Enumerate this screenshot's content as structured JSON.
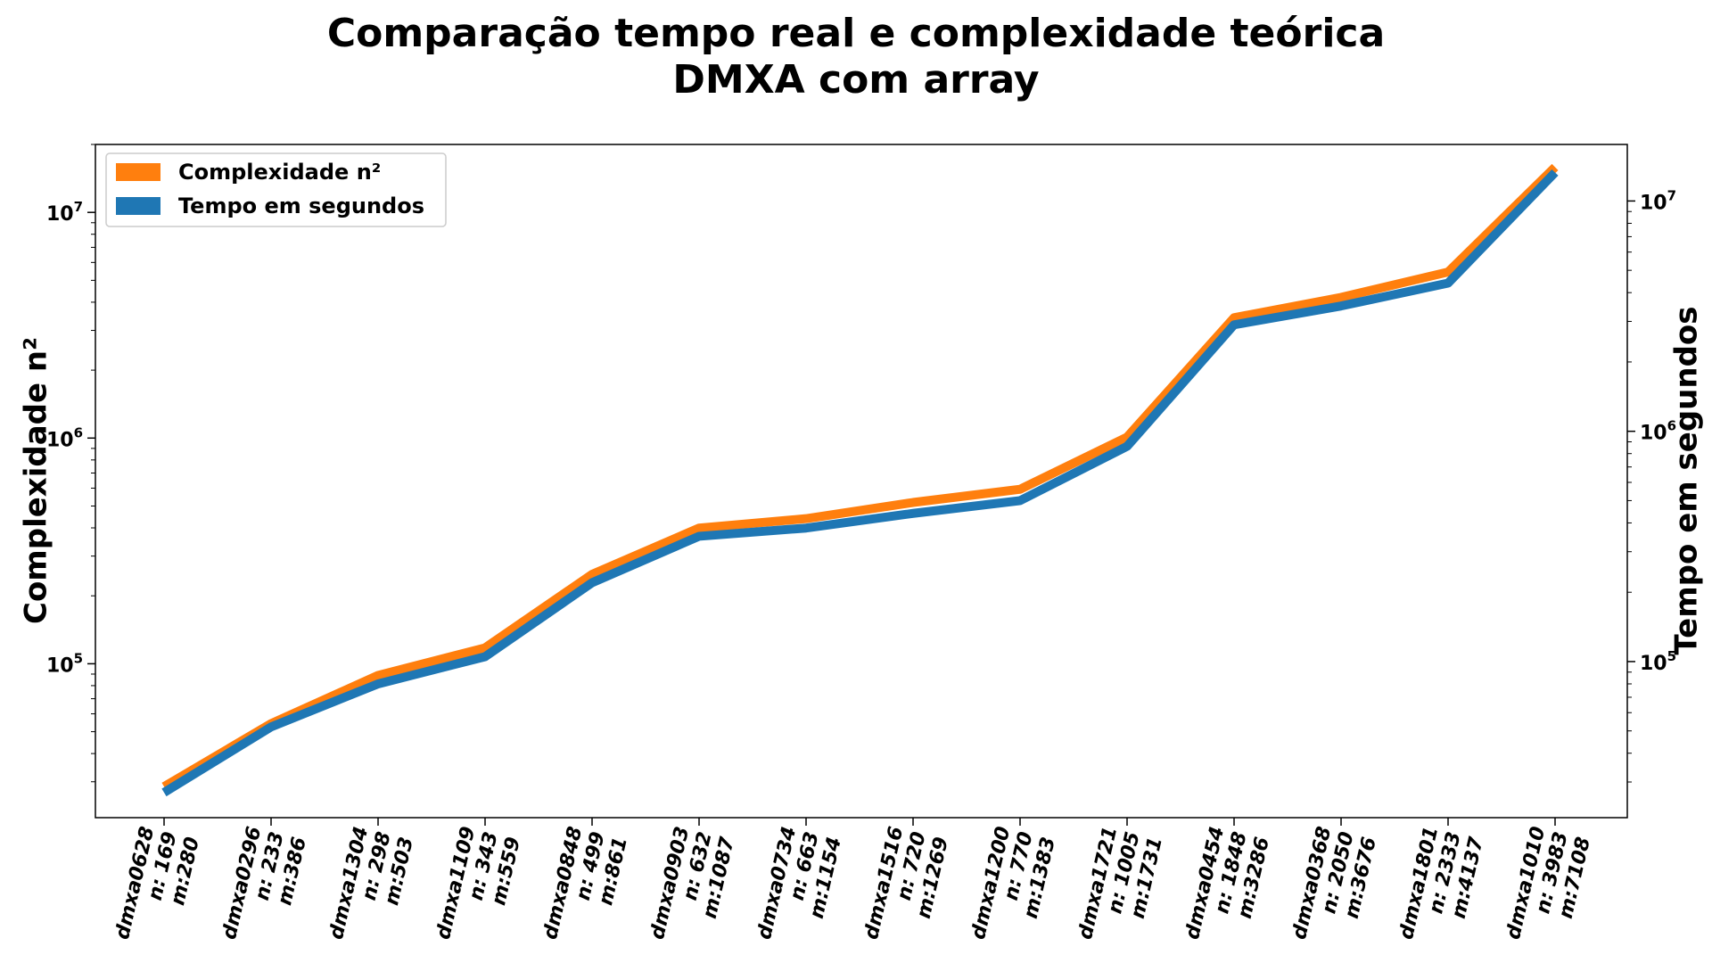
{
  "chart_data": {
    "type": "line",
    "title": "Comparação tempo real e complexidade teórica",
    "subtitle": "DMXA com array",
    "ylabel": "Complexidade n²",
    "y2label": "Tempo em segundos",
    "yscale": "log",
    "y2scale": "log",
    "ylim": [
      20800,
      20000000
    ],
    "y2lim": [
      21000,
      17600000
    ],
    "yticks": [
      {
        "value": 100000,
        "base": "10",
        "exp": "5"
      },
      {
        "value": 1000000,
        "base": "10",
        "exp": "6"
      },
      {
        "value": 10000000,
        "base": "10",
        "exp": "7"
      }
    ],
    "y2ticks": [
      {
        "value": 100000,
        "base": "10",
        "exp": "5"
      },
      {
        "value": 1000000,
        "base": "10",
        "exp": "6"
      },
      {
        "value": 10000000,
        "base": "10",
        "exp": "7"
      }
    ],
    "categories": [
      {
        "name": "dmxa0628",
        "n": "n: 169",
        "m": "m:280"
      },
      {
        "name": "dmxa0296",
        "n": "n: 233",
        "m": "m:386"
      },
      {
        "name": "dmxa1304",
        "n": "n: 298",
        "m": "m:503"
      },
      {
        "name": "dmxa1109",
        "n": "n: 343",
        "m": "m:559"
      },
      {
        "name": "dmxa0848",
        "n": "n: 499",
        "m": "m:861"
      },
      {
        "name": "dmxa0903",
        "n": "n: 632",
        "m": "m:1087"
      },
      {
        "name": "dmxa0734",
        "n": "n: 663",
        "m": "m:1154"
      },
      {
        "name": "dmxa1516",
        "n": "n: 720",
        "m": "m:1269"
      },
      {
        "name": "dmxa1200",
        "n": "n: 770",
        "m": "m:1383"
      },
      {
        "name": "dmxa1721",
        "n": "n: 1005",
        "m": "m:1731"
      },
      {
        "name": "dmxa0454",
        "n": "n: 1848",
        "m": "m:3286"
      },
      {
        "name": "dmxa0368",
        "n": "n: 2050",
        "m": "m:3676"
      },
      {
        "name": "dmxa1801",
        "n": "n: 2333",
        "m": "m:4137"
      },
      {
        "name": "dmxa1010",
        "n": "n: 3983",
        "m": "m:7108"
      }
    ],
    "series": [
      {
        "name": "Complexidade n²",
        "axis": "left",
        "color": "#ff7f0e",
        "values": [
          28561,
          54289,
          88804,
          117649,
          249001,
          399424,
          439569,
          518400,
          592900,
          1010025,
          3415104,
          4202500,
          5442889,
          15864289
        ]
      },
      {
        "name": "Tempo em segundos",
        "axis": "right",
        "color": "#1f77b4",
        "values": [
          27000,
          52000,
          80000,
          105000,
          220000,
          350000,
          380000,
          440000,
          500000,
          860000,
          2900000,
          3500000,
          4400000,
          13300000
        ]
      }
    ],
    "legend": "top-left",
    "grid": false
  }
}
